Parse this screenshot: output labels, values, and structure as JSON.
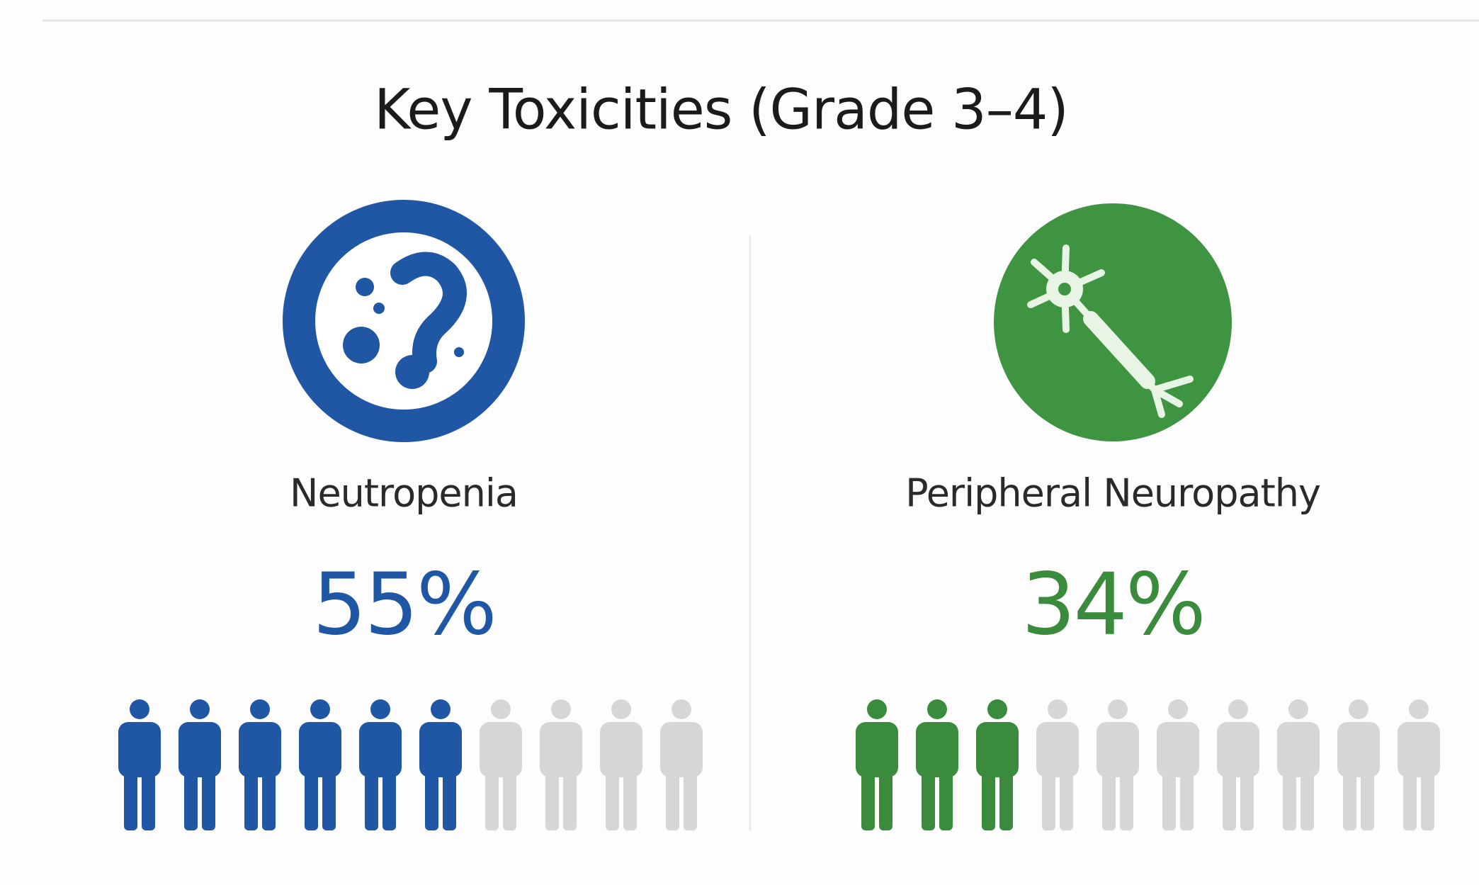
{
  "chart_data": {
    "type": "icon-array",
    "title": "Key Toxicities (Grade 3–4)",
    "categories": [
      "Neutropenia",
      "Peripheral Neuropathy"
    ],
    "values": [
      55,
      34
    ],
    "value_labels": [
      "55%",
      "34%"
    ],
    "colors": [
      "#1f57a4",
      "#3a8c3c"
    ],
    "empty_color": "#d6d6d6"
  }
}
